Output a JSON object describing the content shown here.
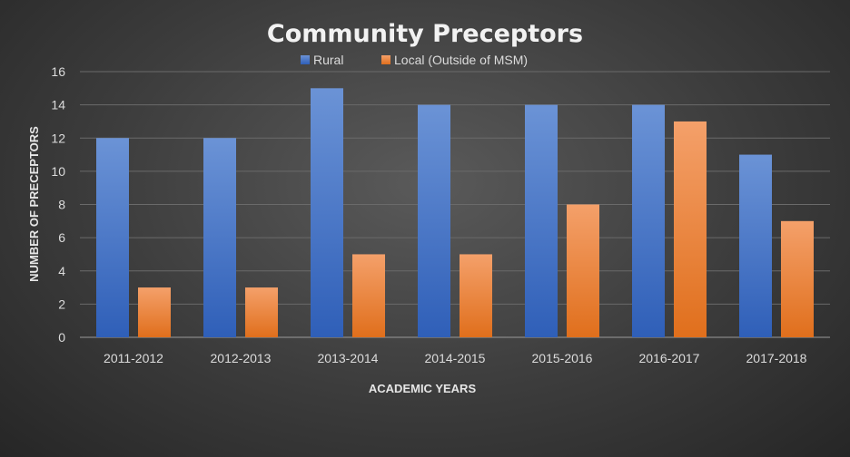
{
  "chart_data": {
    "type": "bar",
    "title": "Community Preceptors",
    "xlabel": "ACADEMIC YEARS",
    "ylabel": "NUMBER OF PRECEPTORS",
    "ylim": [
      0,
      16
    ],
    "yticks": [
      0,
      2,
      4,
      6,
      8,
      10,
      12,
      14,
      16
    ],
    "grid": true,
    "legend_position": "top",
    "categories": [
      "2011-2012",
      "2012-2013",
      "2013-2014",
      "2014-2015",
      "2015-2016",
      "2016-2017",
      "2017-2018"
    ],
    "series": [
      {
        "name": "Rural",
        "color": "#4472c4",
        "values": [
          12,
          12,
          15,
          14,
          14,
          14,
          11
        ]
      },
      {
        "name": "Local (Outside of MSM)",
        "color": "#ed7d31",
        "values": [
          3,
          3,
          5,
          5,
          8,
          13,
          7
        ]
      }
    ]
  }
}
